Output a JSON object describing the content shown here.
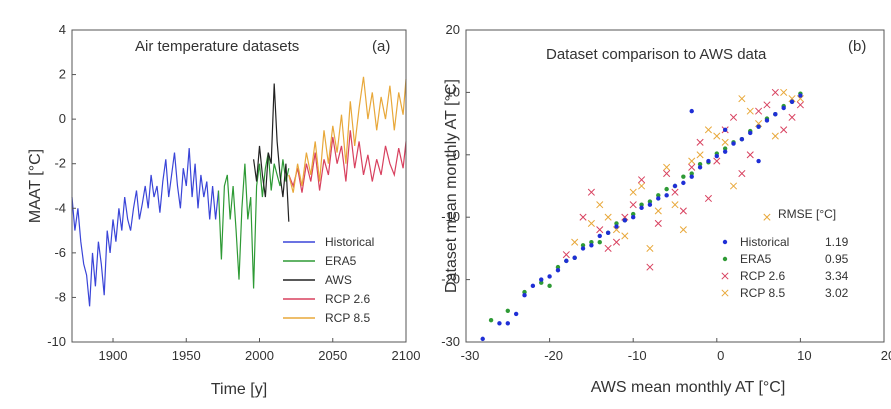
{
  "chart_data": [
    {
      "type": "line",
      "panel_label": "(a)",
      "title": "Air temperature datasets",
      "xlabel": "Time [y]",
      "ylabel": "MAAT [°C]",
      "xlim": [
        1872,
        2100
      ],
      "ylim": [
        -10,
        4
      ],
      "xticks": [
        1900,
        1950,
        2000,
        2050,
        2100
      ],
      "yticks": [
        -10,
        -8,
        -6,
        -4,
        -2,
        0,
        2,
        4
      ],
      "legend_position": "bottom-right",
      "series": [
        {
          "name": "Historical",
          "color": "#3a45d8",
          "x": [
            1872,
            1874,
            1876,
            1878,
            1880,
            1882,
            1884,
            1886,
            1888,
            1890,
            1892,
            1894,
            1896,
            1898,
            1900,
            1902,
            1904,
            1906,
            1908,
            1910,
            1912,
            1914,
            1916,
            1918,
            1920,
            1922,
            1924,
            1926,
            1928,
            1930,
            1932,
            1934,
            1936,
            1938,
            1940,
            1942,
            1944,
            1946,
            1948,
            1950,
            1952,
            1954,
            1956,
            1958,
            1960,
            1962,
            1964,
            1966,
            1968,
            1970,
            1972
          ],
          "y": [
            -3.5,
            -5.0,
            -4.0,
            -5.5,
            -6.5,
            -7.0,
            -8.4,
            -6.0,
            -7.5,
            -5.5,
            -6.5,
            -7.9,
            -5.0,
            -6.0,
            -4.5,
            -5.5,
            -4.0,
            -5.0,
            -3.5,
            -4.5,
            -5.0,
            -4.0,
            -3.2,
            -4.5,
            -3.8,
            -3.0,
            -4.0,
            -2.5,
            -3.5,
            -3.0,
            -4.2,
            -2.8,
            -1.8,
            -3.5,
            -2.5,
            -1.5,
            -3.0,
            -4.0,
            -2.2,
            -3.0,
            -1.3,
            -3.5,
            -2.0,
            -4.0,
            -2.5,
            -3.5,
            -2.8,
            -4.5,
            -3.0,
            -4.5,
            -3.2
          ]
        },
        {
          "name": "ERA5",
          "color": "#2e9a35",
          "x": [
            1972,
            1974,
            1976,
            1978,
            1980,
            1982,
            1984,
            1986,
            1988,
            1990,
            1992,
            1994,
            1996,
            1998,
            2000,
            2002,
            2004,
            2006,
            2008,
            2010,
            2012,
            2014,
            2016,
            2018,
            2020
          ],
          "y": [
            -3.2,
            -6.3,
            -3.0,
            -2.5,
            -4.5,
            -3.0,
            -5.0,
            -7.2,
            -4.0,
            -2.0,
            -4.5,
            -3.5,
            -7.6,
            -3.0,
            -2.0,
            -3.5,
            -2.2,
            -1.5,
            -3.2,
            -2.0,
            -2.5,
            -3.0,
            -1.8,
            -2.8,
            -2.2
          ]
        },
        {
          "name": "AWS",
          "color": "#222222",
          "x": [
            1996,
            1998,
            2000,
            2002,
            2004,
            2006,
            2008,
            2010,
            2012,
            2014,
            2016,
            2018,
            2020
          ],
          "y": [
            -1.8,
            -2.8,
            -1.2,
            -2.5,
            -3.5,
            -1.5,
            -2.0,
            1.6,
            -1.0,
            -2.5,
            -3.5,
            -2.0,
            -4.6
          ]
        },
        {
          "name": "RCP 2.6",
          "color": "#d8415f",
          "x": [
            2020,
            2023,
            2026,
            2029,
            2032,
            2035,
            2038,
            2041,
            2044,
            2047,
            2050,
            2053,
            2056,
            2059,
            2062,
            2065,
            2068,
            2071,
            2074,
            2077,
            2080,
            2083,
            2086,
            2089,
            2092,
            2095,
            2098,
            2100
          ],
          "y": [
            -2.5,
            -3.0,
            -2.2,
            -3.3,
            -2.0,
            -2.8,
            -1.5,
            -3.2,
            -1.8,
            -2.5,
            -0.8,
            -2.0,
            -1.2,
            -2.8,
            -0.5,
            -2.2,
            -1.0,
            -2.5,
            -1.6,
            -2.8,
            -1.8,
            -2.5,
            -1.2,
            -2.0,
            -2.5,
            -1.3,
            -2.2,
            -1.0
          ]
        },
        {
          "name": "RCP 8.5",
          "color": "#e8a83a",
          "x": [
            2020,
            2023,
            2026,
            2029,
            2032,
            2035,
            2038,
            2041,
            2044,
            2047,
            2050,
            2053,
            2056,
            2059,
            2062,
            2065,
            2068,
            2071,
            2074,
            2077,
            2080,
            2083,
            2086,
            2089,
            2092,
            2095,
            2098,
            2100
          ],
          "y": [
            -2.5,
            -3.3,
            -2.0,
            -3.0,
            -1.5,
            -2.5,
            -1.0,
            -2.8,
            -0.5,
            -2.0,
            -0.3,
            -1.5,
            0.2,
            -2.0,
            0.8,
            -1.2,
            0.5,
            1.9,
            0.0,
            1.2,
            -0.5,
            1.0,
            0.0,
            1.5,
            -0.5,
            1.2,
            0.2,
            1.8
          ]
        }
      ]
    },
    {
      "type": "scatter",
      "panel_label": "(b)",
      "title": "Dataset comparison to AWS data",
      "xlabel": "AWS mean monthly AT [°C]",
      "ylabel": "Dataset mean monthly AT [°C]",
      "xlim": [
        -30,
        20
      ],
      "ylim": [
        -30,
        20
      ],
      "xticks": [
        -30,
        -20,
        -10,
        0,
        10,
        20
      ],
      "yticks": [
        -30,
        -20,
        -10,
        0,
        10,
        20
      ],
      "legend_position": "bottom-right",
      "legend_header": "RMSE [°C]",
      "series": [
        {
          "name": "Historical",
          "rmse": "1.19",
          "color": "#1f2fd6",
          "marker": "dot",
          "x": [
            -28,
            -26,
            -24,
            -22,
            -20,
            -18,
            -16,
            -14,
            -12,
            -10,
            -8,
            -6,
            -4,
            -2,
            0,
            2,
            4,
            6,
            8,
            10,
            -21,
            -19,
            -17,
            -15,
            -13,
            -11,
            -9,
            -7,
            -5,
            -3,
            -1,
            1,
            3,
            5,
            7,
            9,
            -25,
            -23,
            -3,
            1,
            5
          ],
          "y": [
            -29.5,
            -27,
            -25.5,
            -21,
            -19.5,
            -17,
            -15,
            -13,
            -11.5,
            -10,
            -8,
            -6.5,
            -4.5,
            -2,
            -0.2,
            1.8,
            3.5,
            5.5,
            7.5,
            9.5,
            -20,
            -18.5,
            -16.5,
            -14.5,
            -12.5,
            -10.5,
            -8.5,
            -7,
            -5,
            -3.5,
            -1,
            0.5,
            2.5,
            4.5,
            6.5,
            8.5,
            -27,
            -22.5,
            7,
            4,
            -1
          ]
        },
        {
          "name": "ERA5",
          "color": "#2e9a35",
          "marker": "dot",
          "rmse": "0.95",
          "x": [
            -27,
            -25,
            -23,
            -21,
            -19,
            -17,
            -15,
            -13,
            -11,
            -9,
            -7,
            -5,
            -3,
            -1,
            1,
            3,
            5,
            7,
            9,
            -20,
            -18,
            -16,
            -14,
            -12,
            -10,
            -8,
            -6,
            -4,
            -2,
            0,
            2,
            4,
            6,
            8,
            10
          ],
          "y": [
            -26.5,
            -25,
            -22,
            -20.5,
            -18,
            -16.5,
            -14,
            -12.5,
            -10.5,
            -8,
            -6.5,
            -5,
            -3,
            -1.2,
            1,
            2.5,
            4.5,
            6.5,
            8.5,
            -21,
            -17,
            -14.5,
            -14,
            -11,
            -9.5,
            -7.5,
            -5.5,
            -3.5,
            -1.5,
            0.2,
            2,
            3.8,
            5.8,
            7.8,
            9.8
          ]
        },
        {
          "name": "RCP 2.6",
          "color": "#d8415f",
          "marker": "x",
          "rmse": "3.34",
          "x": [
            -18,
            -15,
            -12,
            -10,
            -8,
            -6,
            -4,
            -2,
            0,
            2,
            4,
            6,
            8,
            10,
            -14,
            -11,
            -9,
            -7,
            -5,
            -3,
            -1,
            1,
            3,
            5,
            7,
            9,
            -16,
            -13
          ],
          "y": [
            -16,
            -6,
            -14,
            -8,
            -18,
            -3,
            -9,
            2,
            -1,
            6,
            0,
            8,
            4,
            8,
            -12,
            -10,
            -4,
            -11,
            -6,
            -2,
            -7,
            4,
            -3,
            7,
            10,
            6,
            -10,
            -15
          ]
        },
        {
          "name": "RCP 8.5",
          "color": "#e8a83a",
          "marker": "x",
          "rmse": "3.02",
          "x": [
            -17,
            -14,
            -12,
            -10,
            -8,
            -6,
            -4,
            -2,
            0,
            2,
            4,
            6,
            8,
            10,
            -13,
            -11,
            -9,
            -7,
            -5,
            -3,
            -1,
            1,
            3,
            5,
            7,
            9,
            -15
          ],
          "y": [
            -14,
            -8,
            -12,
            -6,
            -15,
            -2,
            -12,
            0,
            3,
            -5,
            7,
            -10,
            10,
            9,
            -10,
            -13,
            -5,
            -9,
            -8,
            -1,
            4,
            2,
            9,
            5,
            3,
            9,
            -11
          ]
        }
      ]
    }
  ]
}
